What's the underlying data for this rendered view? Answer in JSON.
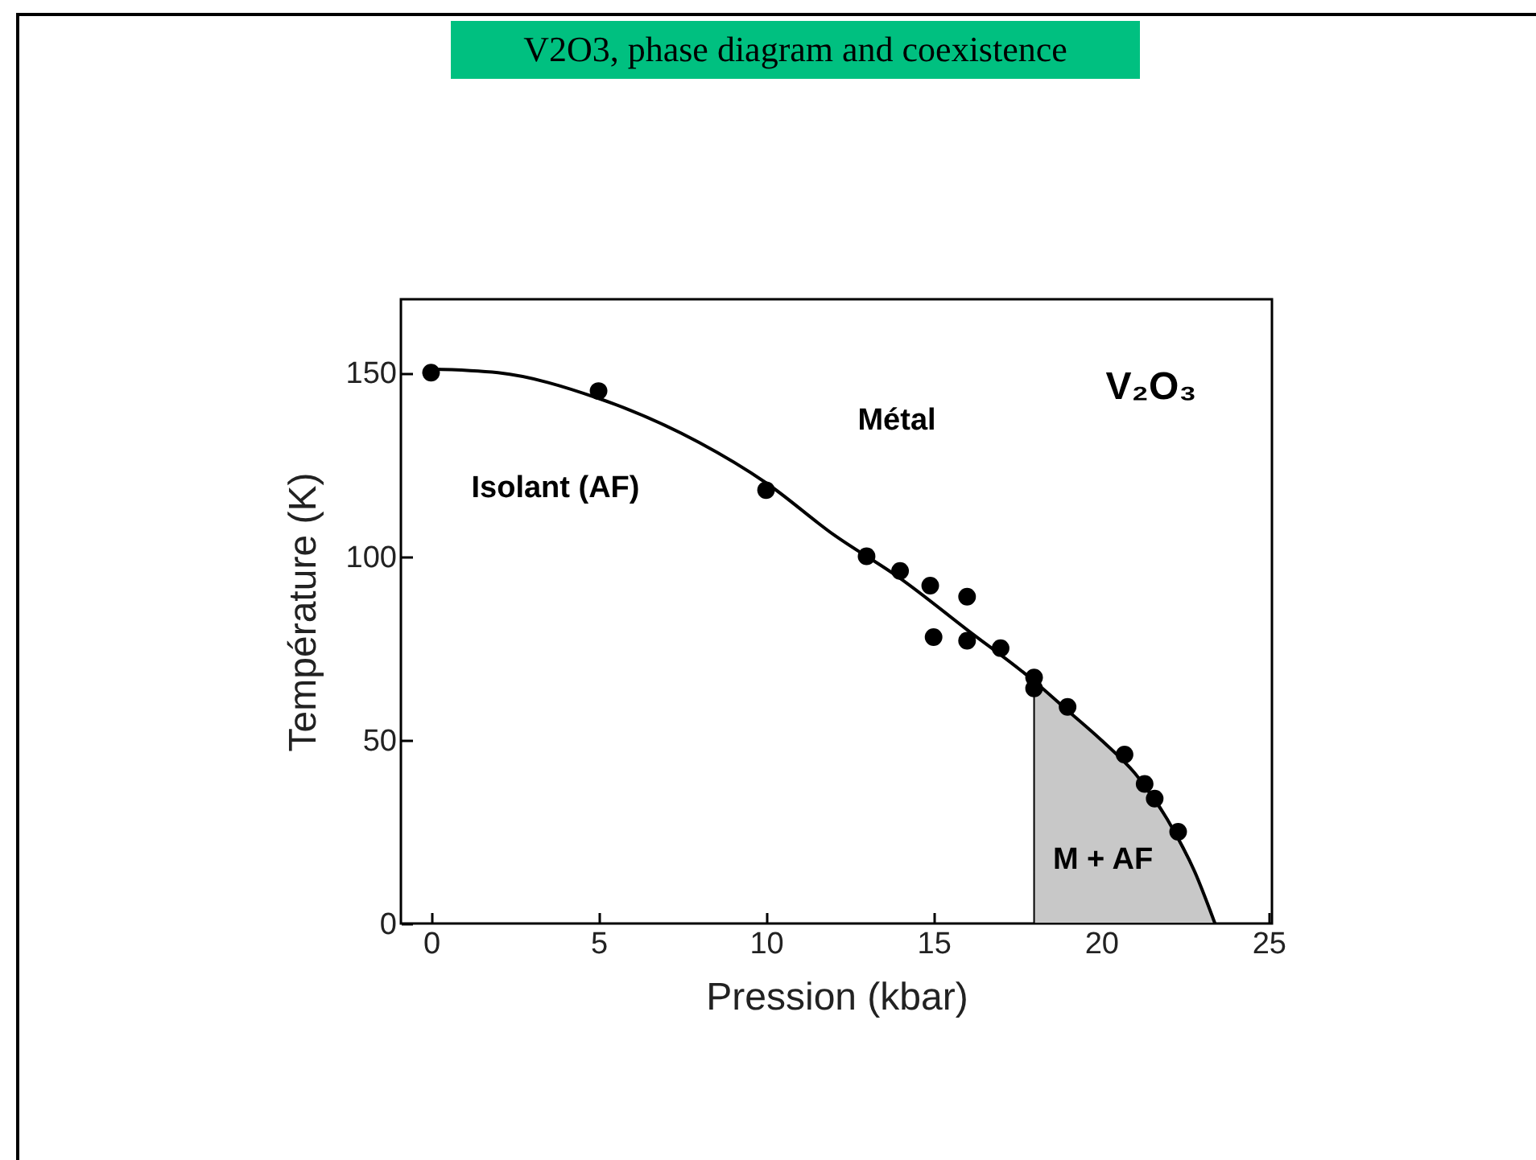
{
  "chart_data": {
    "type": "scatter",
    "title": "V2O3, phase diagram and coexistence",
    "xlabel": "Pression (kbar)",
    "ylabel": "Température (K)",
    "xlim": [
      -0.9,
      25.1
    ],
    "ylim": [
      0,
      170
    ],
    "xticks": [
      0,
      5,
      10,
      15,
      20,
      25
    ],
    "yticks": [
      0,
      50,
      100,
      150
    ],
    "grid": false,
    "annotations": [
      "Métal",
      "Isolant (AF)",
      "M + AF",
      "V₂O₃"
    ],
    "series": [
      {
        "type": "area",
        "color": "#c8c8c8",
        "x": [
          18,
          19,
          20,
          21,
          22,
          22.8,
          23.4
        ],
        "values": [
          66,
          58,
          50,
          41,
          28,
          14,
          0
        ]
      },
      {
        "type": "line",
        "color": "#000000",
        "line_style": "solid",
        "x": [
          0,
          2,
          5,
          8,
          10,
          12,
          14,
          16,
          18,
          19,
          20,
          21,
          22,
          22.8,
          23.4
        ],
        "values": [
          151,
          150,
          143,
          131,
          120,
          106,
          94,
          80,
          66,
          58,
          50,
          41,
          28,
          14,
          0
        ]
      },
      {
        "marker": "circle",
        "color": "#000000",
        "x": [
          0,
          5,
          10,
          13,
          14,
          14.9,
          15,
          16,
          16,
          17,
          18,
          18,
          19,
          20.7,
          21.3,
          21.6,
          22.3
        ],
        "values": [
          150,
          145,
          118,
          100,
          96,
          92,
          78,
          89,
          77,
          75,
          67,
          64,
          59,
          46,
          38,
          34,
          25
        ]
      }
    ]
  }
}
